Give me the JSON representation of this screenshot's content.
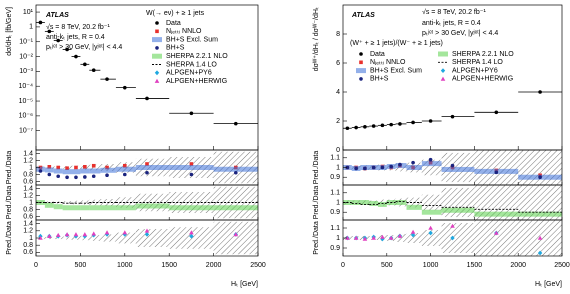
{
  "chart_data": [
    {
      "type": "scatter",
      "log_y": true,
      "ylabel": "dσ/dHₜ [fb/GeV]",
      "xlabel": "Hₜ [GeV]",
      "annotations": [
        "ATLAS",
        "√s = 8 TeV, 20.2 fb⁻¹",
        "anti-kₜ jets, R = 0.4",
        "pₜʲᵉᵗ > 30 GeV, |yʲᵉᵗ| < 4.4",
        "W(→ eν) + ≥ 1 jets"
      ],
      "xlim": [
        0,
        2500
      ],
      "xticks": [
        0,
        500,
        1000,
        1500,
        2000,
        2500
      ],
      "ylim": [
        5e-09,
        30
      ],
      "yticks": [
        {
          "value": 10,
          "label": "10¹"
        },
        1,
        {
          "value": 0.1,
          "label": "10⁻¹"
        },
        {
          "value": 0.01,
          "label": "10⁻²"
        },
        {
          "value": 0.001,
          "label": "10⁻³"
        },
        {
          "value": 0.0001,
          "label": "10⁻⁴"
        },
        {
          "value": 1e-05,
          "label": "10⁻⁵"
        },
        {
          "value": 1e-06,
          "label": "10⁻⁶"
        },
        {
          "value": 1e-07,
          "label": "10⁻⁷"
        }
      ],
      "x": [
        50,
        150,
        250,
        350,
        450,
        550,
        650,
        800,
        1000,
        1250,
        1750,
        2250
      ],
      "series": [
        {
          "name": "Data",
          "color": "#000000",
          "marker": "circle",
          "values": [
            2,
            0.5,
            0.12,
            0.03,
            0.01,
            0.003,
            0.0012,
            0.0003,
            8e-05,
            1.5e-05,
            1.5e-06,
            3e-07
          ]
        }
      ],
      "data_uncertainty": [
        0.03,
        0.03,
        0.03,
        0.04,
        0.05,
        0.06,
        0.08,
        0.1,
        0.15,
        0.25,
        0.3,
        0.45
      ],
      "ratio_panels": [
        {
          "ylabel": "Pred./Data",
          "ylim": [
            0.5,
            1.5
          ],
          "yticks": [
            0.6,
            0.8,
            1,
            1.2,
            1.4
          ],
          "series": [
            {
              "name": "Nⱼₑₜₜᵢ NNLO",
              "color": "#e8302c",
              "marker": "square",
              "values": [
                1.0,
                1.02,
                1.0,
                0.98,
                1.0,
                1.02,
                1.05,
                1.0,
                1.05,
                1.1,
                1.1,
                1.0
              ]
            },
            {
              "name": "BH+S Excl. Sum",
              "color": "#3a6fd8",
              "marker": "band",
              "values": [
                0.95,
                0.93,
                0.9,
                0.88,
                0.88,
                0.9,
                0.9,
                0.92,
                0.95,
                1.0,
                1.0,
                0.95
              ]
            },
            {
              "name": "BH+S",
              "color": "#1a237e",
              "marker": "circle",
              "values": [
                0.9,
                0.8,
                0.75,
                0.72,
                0.72,
                0.73,
                0.75,
                0.78,
                0.8,
                0.85,
                0.8,
                0.85
              ]
            }
          ]
        },
        {
          "ylabel": "Pred./Data",
          "ylim": [
            0.5,
            1.5
          ],
          "yticks": [
            0.6,
            0.8,
            1,
            1.2,
            1.4
          ],
          "series": [
            {
              "name": "SHERPA 2.2.1 NLO",
              "color": "#5ad24a",
              "marker": "band",
              "values": [
                1.0,
                0.92,
                0.88,
                0.85,
                0.85,
                0.85,
                0.85,
                0.85,
                0.85,
                0.9,
                0.85,
                0.85
              ]
            },
            {
              "name": "SHERPA 1.4 LO",
              "color": "#000000",
              "marker": "dashed",
              "values": [
                1.0,
                1.0,
                1.0,
                0.98,
                0.98,
                0.98,
                1.0,
                1.0,
                1.0,
                1.0,
                1.0,
                1.0
              ]
            }
          ]
        },
        {
          "ylabel": "Pred./Data",
          "ylim": [
            0.5,
            1.5
          ],
          "yticks": [
            0.6,
            0.8,
            1,
            1.2,
            1.4
          ],
          "series": [
            {
              "name": "ALPGEN+PY6",
              "color": "#1fa8e0",
              "marker": "diamond",
              "values": [
                1.05,
                1.05,
                1.05,
                1.08,
                1.05,
                1.05,
                1.08,
                1.1,
                1.1,
                1.1,
                1.05,
                1.1
              ]
            },
            {
              "name": "ALPGEN+HERWIG",
              "color": "#e040c0",
              "marker": "triangle",
              "values": [
                1.0,
                1.05,
                1.08,
                1.1,
                1.1,
                1.1,
                1.12,
                1.15,
                1.15,
                1.2,
                1.15,
                1.1
              ]
            }
          ]
        }
      ]
    },
    {
      "type": "scatter",
      "log_y": false,
      "ylabel": "dσᵂ⁺/dHₜ / dσᵂ⁻/dHₜ",
      "xlabel": "Hₜ [GeV]",
      "annotations": [
        "ATLAS",
        "√s = 8 TeV, 20.2 fb⁻¹",
        "anti-kₜ jets, R = 0.4",
        "pₜʲᵉᵗ > 30 GeV, |yʲᵉᵗ| < 4.4",
        "(W⁺ + ≥ 1 jets)/(W⁻ + ≥ 1 jets)"
      ],
      "xlim": [
        0,
        2500
      ],
      "xticks": [
        0,
        500,
        1000,
        1500,
        2000,
        2500
      ],
      "ylim": [
        0,
        10
      ],
      "yticks": [
        0,
        2,
        4,
        6,
        8
      ],
      "x": [
        50,
        150,
        250,
        350,
        450,
        550,
        650,
        800,
        1000,
        1250,
        1750,
        2250
      ],
      "series": [
        {
          "name": "Data",
          "color": "#000000",
          "marker": "circle",
          "values": [
            1.5,
            1.55,
            1.6,
            1.65,
            1.7,
            1.75,
            1.8,
            1.9,
            2.0,
            2.3,
            2.6,
            4.0
          ]
        }
      ],
      "data_uncertainty": [
        0.02,
        0.02,
        0.02,
        0.02,
        0.03,
        0.03,
        0.04,
        0.05,
        0.08,
        0.15,
        0.2,
        0.3
      ],
      "ratio_panels": [
        {
          "ylabel": "Pred./Data",
          "ylim": [
            0.82,
            1.18
          ],
          "yticks": [
            0.9,
            1,
            1.1
          ],
          "series": [
            {
              "name": "Nⱼₑₜₜᵢ NNLO",
              "color": "#e8302c",
              "marker": "square",
              "values": [
                1.0,
                1.0,
                0.99,
                1.0,
                1.01,
                1.0,
                1.02,
                1.0,
                1.05,
                1.0,
                0.97,
                0.92
              ]
            },
            {
              "name": "BH+S Excl. Sum",
              "color": "#3a6fd8",
              "marker": "band",
              "values": [
                1.0,
                0.99,
                1.0,
                1.0,
                1.0,
                1.01,
                1.02,
                1.0,
                1.04,
                0.98,
                0.96,
                0.9
              ]
            },
            {
              "name": "BH+S",
              "color": "#1a237e",
              "marker": "circle",
              "values": [
                1.0,
                0.99,
                0.99,
                1.0,
                1.0,
                1.01,
                1.03,
                1.05,
                1.08,
                1.02,
                0.95,
                0.9
              ]
            }
          ]
        },
        {
          "ylabel": "Pred./Data",
          "ylim": [
            0.82,
            1.18
          ],
          "yticks": [
            0.9,
            1,
            1.1
          ],
          "series": [
            {
              "name": "SHERPA 2.2.1 NLO",
              "color": "#5ad24a",
              "marker": "band",
              "values": [
                1.0,
                1.0,
                1.0,
                0.99,
                0.98,
                1.0,
                1.0,
                0.95,
                0.9,
                0.92,
                0.88,
                0.88
              ]
            },
            {
              "name": "SHERPA 1.4 LO",
              "color": "#000000",
              "marker": "dashed",
              "values": [
                1.0,
                0.99,
                0.98,
                0.98,
                0.99,
                1.0,
                1.01,
                1.0,
                0.97,
                0.95,
                0.93,
                0.9
              ]
            }
          ]
        },
        {
          "ylabel": "Pred./Data",
          "ylim": [
            0.82,
            1.18
          ],
          "yticks": [
            0.9,
            1,
            1.1
          ],
          "series": [
            {
              "name": "ALPGEN+PY6",
              "color": "#1fa8e0",
              "marker": "diamond",
              "values": [
                1.0,
                1.0,
                1.0,
                1.01,
                0.99,
                1.0,
                1.02,
                1.03,
                1.05,
                1.0,
                1.05,
                0.85
              ]
            },
            {
              "name": "ALPGEN+HERWIG",
              "color": "#e040c0",
              "marker": "triangle",
              "values": [
                1.0,
                1.0,
                0.99,
                1.0,
                1.01,
                1.0,
                1.02,
                1.06,
                1.1,
                1.12,
                1.05,
                1.0
              ]
            }
          ]
        }
      ]
    }
  ]
}
